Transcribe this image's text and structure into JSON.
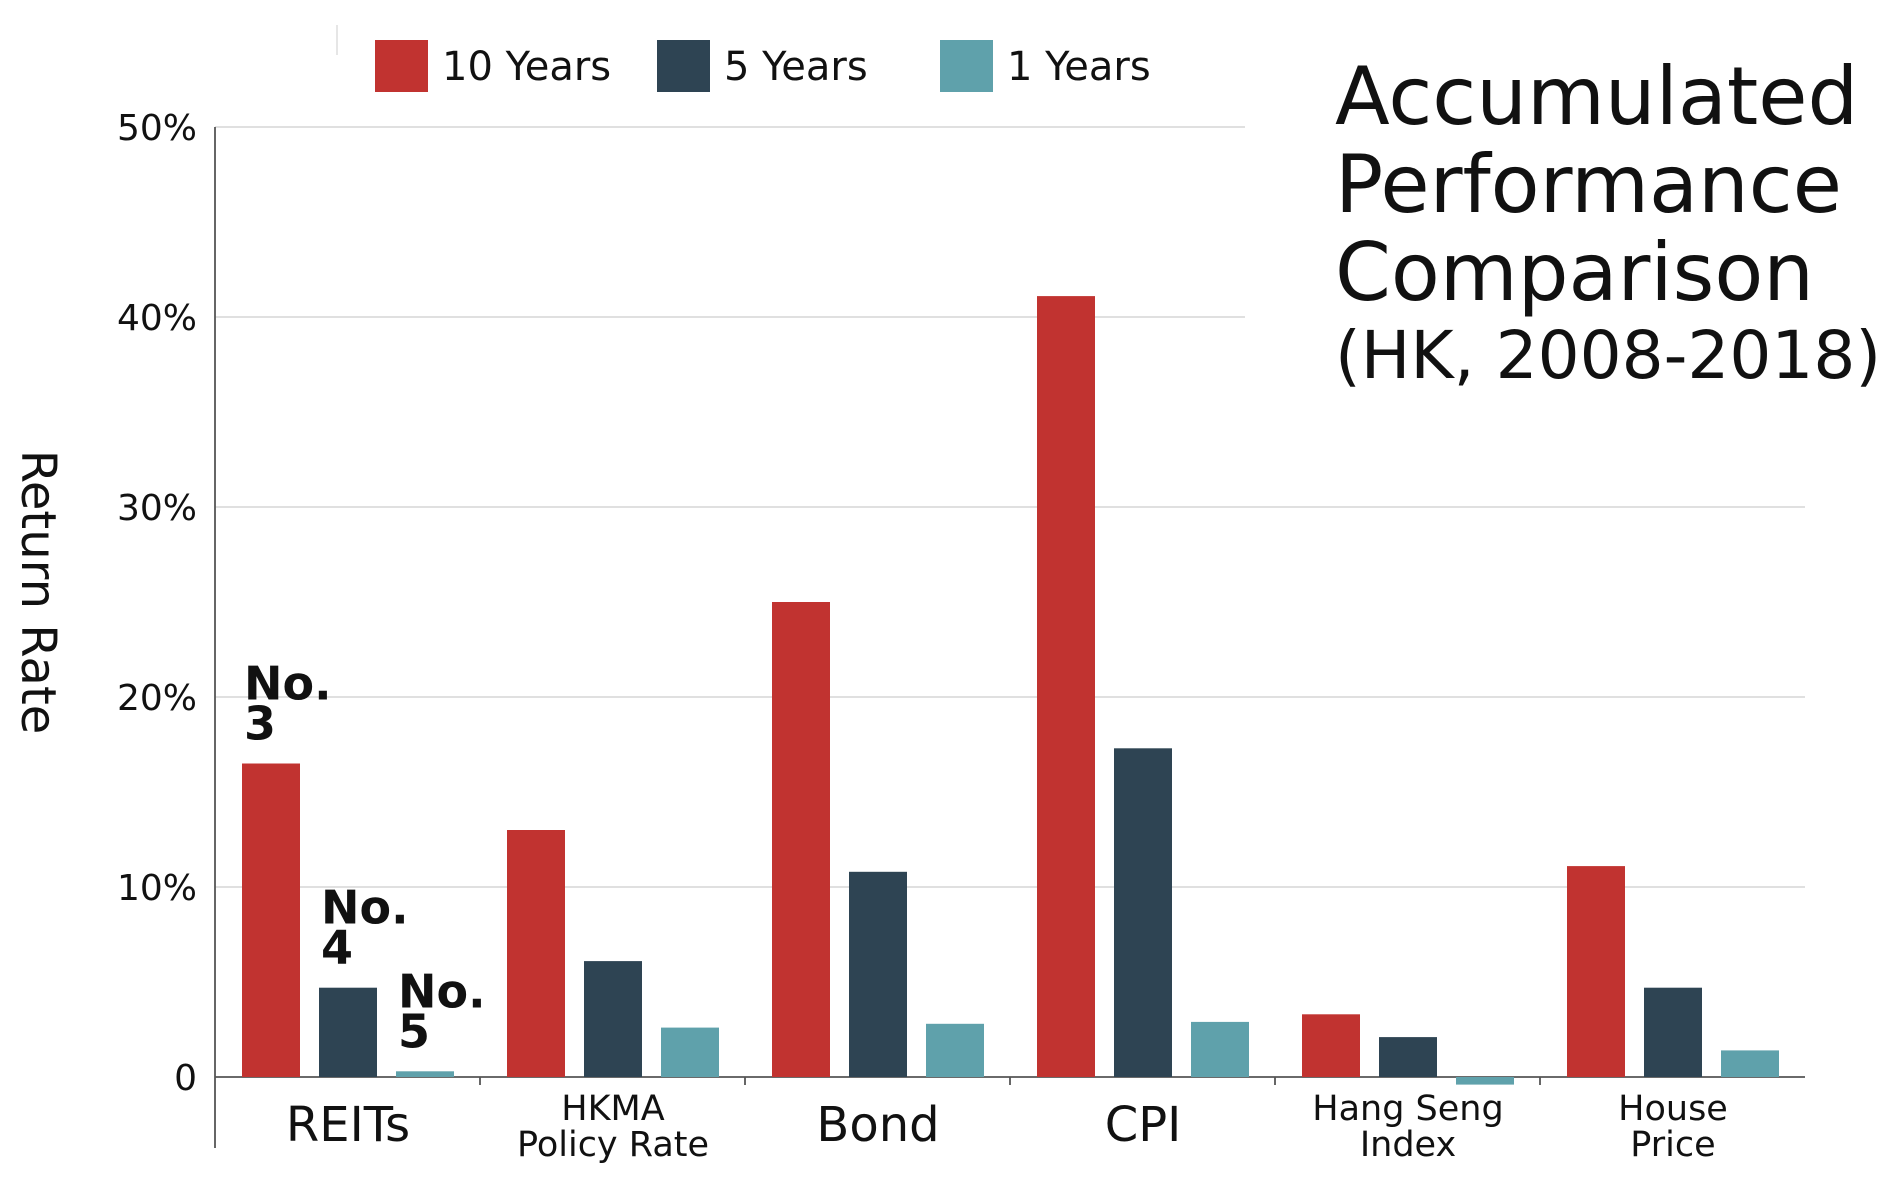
{
  "chart_data": {
    "type": "bar",
    "title": [
      "Accumulated",
      "Performance",
      "Comparison"
    ],
    "subtitle": "(HK, 2008-2018)",
    "ylabel": "Return Rate",
    "xlabel": "",
    "ylim": [
      -1,
      50
    ],
    "y_ticks": [
      {
        "value": 0,
        "label": "0"
      },
      {
        "value": 10,
        "label": "10%"
      },
      {
        "value": 20,
        "label": "20%"
      },
      {
        "value": 30,
        "label": "30%"
      },
      {
        "value": 40,
        "label": "40%"
      },
      {
        "value": 50,
        "label": "50%"
      }
    ],
    "grid": true,
    "legend_position": "top",
    "categories": [
      {
        "lines": [
          "REITs"
        ],
        "size": "big"
      },
      {
        "lines": [
          "HKMA",
          "Policy Rate"
        ],
        "size": "small"
      },
      {
        "lines": [
          "Bond"
        ],
        "size": "big"
      },
      {
        "lines": [
          "CPI"
        ],
        "size": "big"
      },
      {
        "lines": [
          "Hang Seng",
          "Index"
        ],
        "size": "small"
      },
      {
        "lines": [
          "House",
          "Price"
        ],
        "size": "small"
      }
    ],
    "series": [
      {
        "name": "10 Years",
        "color": "#c13330",
        "values": [
          16.5,
          13.0,
          25.0,
          41.1,
          3.3,
          11.1
        ]
      },
      {
        "name": "5 Years",
        "color": "#2e4453",
        "values": [
          4.7,
          6.1,
          10.8,
          17.3,
          2.1,
          4.7
        ]
      },
      {
        "name": "1 Years",
        "color": "#5fa1ab",
        "values": [
          0.3,
          2.6,
          2.8,
          2.9,
          -0.4,
          1.4
        ]
      }
    ],
    "annotations": [
      {
        "lines": [
          "No.",
          "3"
        ],
        "series_index": 0,
        "category_index": 0
      },
      {
        "lines": [
          "No.",
          "4"
        ],
        "series_index": 1,
        "category_index": 0
      },
      {
        "lines": [
          "No.",
          "5"
        ],
        "series_index": 2,
        "category_index": 0
      }
    ]
  }
}
